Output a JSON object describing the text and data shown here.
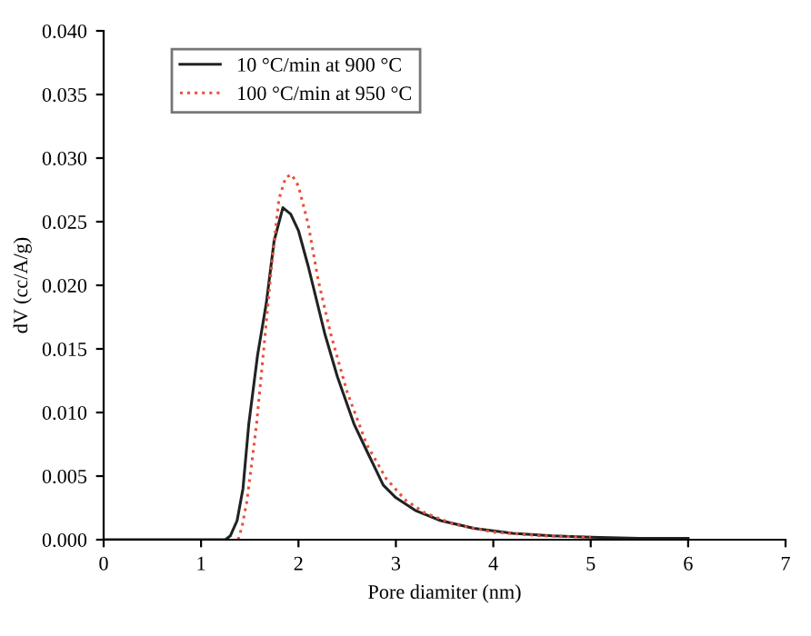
{
  "chart_data": {
    "type": "line",
    "xlabel": "Pore diamiter (nm)",
    "ylabel": "dV (cc/A/g)",
    "xlim": [
      0,
      7
    ],
    "ylim": [
      0,
      0.04
    ],
    "xticks": [
      0,
      1,
      2,
      3,
      4,
      5,
      6,
      7
    ],
    "yticks": [
      {
        "value": 0,
        "label": "0.000"
      },
      {
        "value": 0.005,
        "label": "0.005"
      },
      {
        "value": 0.01,
        "label": "0.010"
      },
      {
        "value": 0.015,
        "label": "0.015"
      },
      {
        "value": 0.02,
        "label": "0.020"
      },
      {
        "value": 0.025,
        "label": "0.025"
      },
      {
        "value": 0.03,
        "label": "0.030"
      },
      {
        "value": 0.035,
        "label": "0.035"
      },
      {
        "value": 0.04,
        "label": "0.040"
      }
    ],
    "grid": false,
    "legend": "top left",
    "series": [
      {
        "name": "10 °C/min at 900 °C",
        "color": "#222222",
        "line_style": "solid",
        "x": [
          0,
          1.0,
          1.25,
          1.3,
          1.37,
          1.43,
          1.49,
          1.58,
          1.67,
          1.75,
          1.84,
          1.92,
          2.0,
          2.1,
          2.27,
          2.4,
          2.57,
          2.7,
          2.87,
          3.0,
          3.2,
          3.46,
          3.8,
          4.2,
          4.6,
          5.0,
          5.5,
          6.0
        ],
        "values": [
          0,
          0,
          0,
          0.0003,
          0.0015,
          0.004,
          0.0091,
          0.0145,
          0.0186,
          0.0235,
          0.0261,
          0.0256,
          0.0243,
          0.0215,
          0.0162,
          0.0128,
          0.0091,
          0.007,
          0.0043,
          0.0033,
          0.0023,
          0.0015,
          0.0009,
          0.0005,
          0.0003,
          0.0002,
          0.0001,
          0.0001
        ]
      },
      {
        "name": "100 °C/min at 950 °C",
        "color": "#e8503a",
        "line_style": "dotted",
        "x": [
          1.38,
          1.42,
          1.47,
          1.52,
          1.57,
          1.65,
          1.73,
          1.8,
          1.87,
          1.93,
          2.0,
          2.1,
          2.2,
          2.33,
          2.5,
          2.7,
          2.9,
          3.1,
          3.3,
          3.6,
          4.0,
          4.5,
          5.0
        ],
        "values": [
          0,
          0.001,
          0.003,
          0.006,
          0.0091,
          0.0155,
          0.022,
          0.0268,
          0.0285,
          0.0287,
          0.0278,
          0.0248,
          0.0205,
          0.0162,
          0.0116,
          0.0075,
          0.0048,
          0.0031,
          0.0021,
          0.0012,
          0.0006,
          0.0003,
          0.0002
        ]
      }
    ]
  }
}
